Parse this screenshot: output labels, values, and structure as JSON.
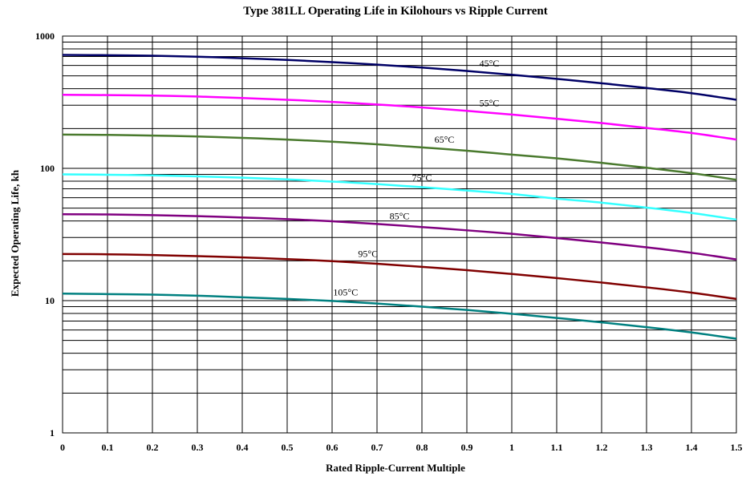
{
  "chart_data": {
    "type": "line",
    "title": "Type 381LL Operating Life in Kilohours vs Ripple Current",
    "xlabel": "Rated Ripple-Current Multiple",
    "ylabel": "Expected Operating Life, kh",
    "xlim": [
      0,
      1.5
    ],
    "ylim": [
      1,
      1000
    ],
    "yscale": "log",
    "grid": true,
    "x_ticks": [
      0,
      0.1,
      0.2,
      0.3,
      0.4,
      0.5,
      0.6,
      0.7,
      0.8,
      0.9,
      1,
      1.1,
      1.2,
      1.3,
      1.4,
      1.5
    ],
    "x_tick_labels": [
      "0",
      "0.1",
      "0.2",
      "0.3",
      "0.4",
      "0.5",
      "0.6",
      "0.7",
      "0.8",
      "0.9",
      "1",
      "1.1",
      "1.2",
      "1.3",
      "1.4",
      "1.5"
    ],
    "y_ticks": [
      1,
      10,
      100,
      1000
    ],
    "y_tick_labels": [
      "1",
      "10",
      "100",
      "1000"
    ],
    "x": [
      0,
      0.1,
      0.2,
      0.3,
      0.4,
      0.5,
      0.6,
      0.7,
      0.8,
      0.9,
      1.0,
      1.1,
      1.2,
      1.3,
      1.4,
      1.5
    ],
    "series": [
      {
        "name": "45°C",
        "color": "#000066",
        "label_x": 0.95,
        "values": [
          720,
          717,
          710,
          698,
          680,
          660,
          635,
          608,
          578,
          545,
          510,
          475,
          440,
          405,
          370,
          330
        ]
      },
      {
        "name": "55°C",
        "color": "#ff00ff",
        "label_x": 0.95,
        "values": [
          360,
          358,
          355,
          349,
          340,
          330,
          318,
          304,
          289,
          272,
          255,
          237,
          220,
          202,
          185,
          165
        ]
      },
      {
        "name": "65°C",
        "color": "#4a7a2e",
        "label_x": 0.85,
        "values": [
          180,
          179,
          177,
          174,
          170,
          165,
          159,
          152,
          144,
          136,
          127,
          119,
          110,
          101,
          92,
          82
        ]
      },
      {
        "name": "75°C",
        "color": "#33ffff",
        "label_x": 0.8,
        "values": [
          90,
          89.5,
          88.5,
          87,
          85,
          82.5,
          79.5,
          76,
          72,
          68,
          64,
          59,
          55,
          50.5,
          46,
          41
        ]
      },
      {
        "name": "85°C",
        "color": "#800080",
        "label_x": 0.75,
        "values": [
          45,
          44.8,
          44.3,
          43.5,
          42.5,
          41.3,
          39.8,
          38,
          36,
          34,
          32,
          29.7,
          27.5,
          25.3,
          23,
          20.5
        ]
      },
      {
        "name": "95°C",
        "color": "#800000",
        "label_x": 0.68,
        "values": [
          22.5,
          22.4,
          22.1,
          21.7,
          21.2,
          20.6,
          19.9,
          19,
          18,
          17,
          15.9,
          14.8,
          13.7,
          12.6,
          11.5,
          10.3
        ]
      },
      {
        "name": "105°C",
        "color": "#008080",
        "label_x": 0.63,
        "values": [
          11.3,
          11.2,
          11.1,
          10.9,
          10.6,
          10.3,
          9.95,
          9.5,
          9.0,
          8.5,
          7.95,
          7.4,
          6.85,
          6.3,
          5.75,
          5.15
        ]
      }
    ]
  }
}
